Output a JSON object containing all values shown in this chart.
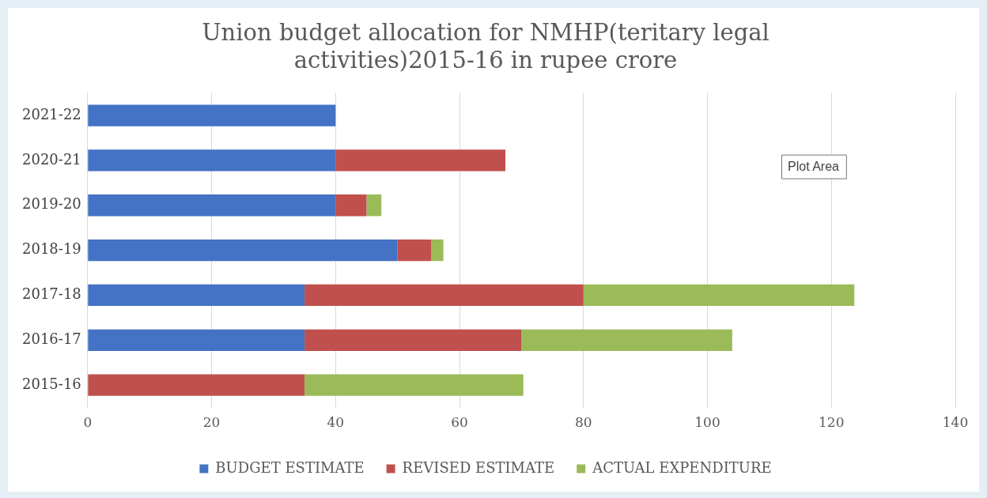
{
  "chart_data": {
    "type": "bar",
    "orientation": "horizontal",
    "stacked": true,
    "title": "Union budget allocation for NMHP(teritary legal activities)2015-16 in rupee crore",
    "categories": [
      "2021-22",
      "2020-21",
      "2019-20",
      "2018-19",
      "2017-18",
      "2016-17",
      "2015-16"
    ],
    "series": [
      {
        "name": "BUDGET ESTIMATE",
        "color": "#4472c4",
        "values": [
          40,
          40,
          40,
          50,
          35,
          35,
          0
        ]
      },
      {
        "name": "REVISED ESTIMATE",
        "color": "#c0504d",
        "values": [
          0,
          27.4,
          5,
          5.4,
          45,
          35,
          35
        ]
      },
      {
        "name": "ACTUAL EXPENDITURE",
        "color": "#9bbb59",
        "values": [
          0,
          0,
          2.4,
          2,
          43.7,
          34,
          35.3
        ]
      }
    ],
    "xlim": [
      0,
      140
    ],
    "xticks": [
      0,
      20,
      40,
      60,
      80,
      100,
      120,
      140
    ],
    "grid": "x",
    "legend": "bottom",
    "annotations": [
      "Plot Area"
    ]
  }
}
